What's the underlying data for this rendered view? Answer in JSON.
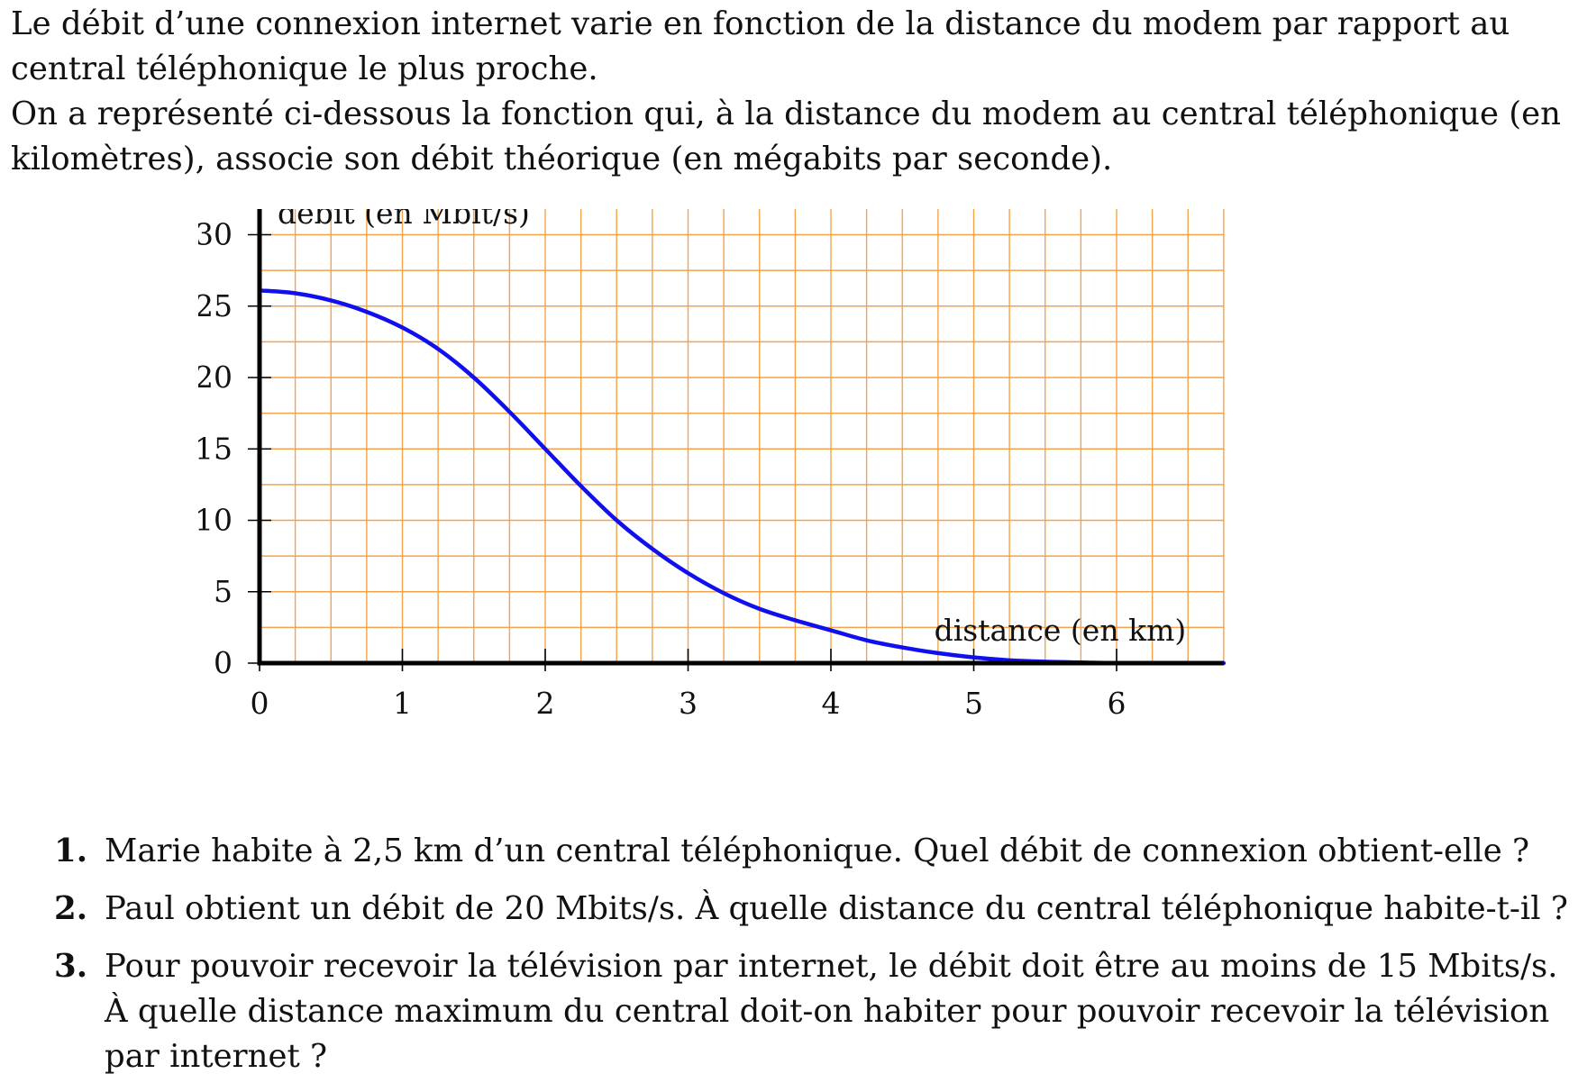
{
  "intro": {
    "paragraph1": "Le débit d’une connexion internet varie en fonction de la distance du modem par rapport au central téléphonique le plus proche.",
    "paragraph2": "On a représenté ci-dessous la fonction qui, à la distance du modem au central téléphonique (en kilomètres), associe son débit théorique (en mégabits par seconde)."
  },
  "chart_data": {
    "type": "line",
    "xlabel": "distance (en km)",
    "ylabel": "débit (en Mbit/s)",
    "xlim": [
      0,
      6.75
    ],
    "ylim": [
      0,
      32.5
    ],
    "x_ticks": [
      0,
      1,
      2,
      3,
      4,
      5,
      6
    ],
    "y_ticks": [
      0,
      5,
      10,
      15,
      20,
      25,
      30
    ],
    "grid": true,
    "grid_step_x": 0.25,
    "grid_step_y": 2.5,
    "colors": {
      "grid": "#f4a34a",
      "curve": "#1010ee",
      "axis": "#000000"
    },
    "series": [
      {
        "x": [
          0,
          0.25,
          0.5,
          0.75,
          1,
          1.25,
          1.5,
          1.75,
          2,
          2.25,
          2.5,
          2.75,
          3,
          3.25,
          3.5,
          3.75,
          4,
          4.25,
          4.5,
          4.75,
          5,
          5.25,
          5.5,
          5.75,
          6,
          6.25,
          6.5,
          6.75
        ],
        "y": [
          26.1,
          25.9,
          25.4,
          24.6,
          23.5,
          22.0,
          20.0,
          17.6,
          15.0,
          12.4,
          10.0,
          8.0,
          6.3,
          4.9,
          3.8,
          3.0,
          2.3,
          1.6,
          1.1,
          0.7,
          0.4,
          0.2,
          0.1,
          0.05,
          0.0,
          0.0,
          0.0,
          0.0
        ]
      }
    ]
  },
  "questions": [
    {
      "num": "1.",
      "lines": [
        "Marie habite à 2,5 km d’un central téléphonique. Quel débit de connexion obtient-elle ?"
      ]
    },
    {
      "num": "2.",
      "lines": [
        "Paul obtient un débit de 20 Mbits/s. À quelle distance du central téléphonique habite-t-il ?"
      ]
    },
    {
      "num": "3.",
      "lines": [
        "Pour pouvoir recevoir la télévision par internet, le débit doit être au moins de 15 Mbits/s.",
        "À quelle distance maximum du central doit-on habiter pour pouvoir recevoir la télévision par internet ?"
      ]
    }
  ]
}
